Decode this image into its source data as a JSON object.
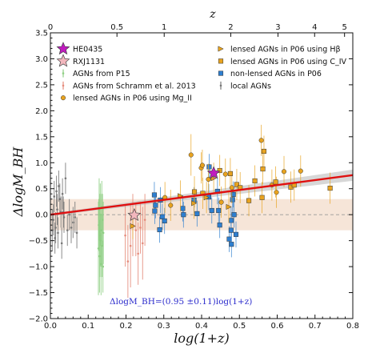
{
  "chart_data": {
    "type": "scatter",
    "xlabel": "log(1+z)",
    "ylabel": "ΔlogM_BH",
    "top_axis_label": "z",
    "xlim": [
      0.0,
      0.8
    ],
    "ylim": [
      -2.0,
      3.5
    ],
    "x_ticks": [
      "0.0",
      "0.1",
      "0.2",
      "0.3",
      "0.4",
      "0.5",
      "0.6",
      "0.7",
      "0.8"
    ],
    "y_ticks": [
      "−2.0",
      "−1.5",
      "−1.0",
      "−0.5",
      "0.0",
      "0.5",
      "1.0",
      "1.5",
      "2.0",
      "2.5",
      "3.0",
      "3.5"
    ],
    "top_ticks": [
      "0",
      "0.5",
      "1",
      "2",
      "3",
      "4",
      "5"
    ],
    "top_tick_z": [
      0,
      0.5,
      1,
      2,
      3,
      4,
      5
    ],
    "fit": {
      "slope": 0.95,
      "slope_err": 0.11,
      "label": "ΔlogM_BH=(0.95 ±0.11)log(1+z)"
    },
    "band": {
      "ylow": -0.3,
      "yhigh": 0.3
    },
    "legend_left": [
      {
        "label": "HE0435",
        "marker": "star",
        "color": "#c01bbf"
      },
      {
        "label": "RXJ1131",
        "marker": "star",
        "color": "#f2b7bd"
      },
      {
        "label": "AGNs from P15",
        "marker": "errbar",
        "color": "#8fcf84"
      },
      {
        "label": "AGNs from Schramm et al. 2013",
        "marker": "errbar",
        "color": "#e58b7b"
      },
      {
        "label": "lensed AGNs in P06 using Mg_II",
        "marker": "circle",
        "color": "#e8a31f"
      }
    ],
    "legend_right": [
      {
        "label": "lensed AGNs in P06 using Hβ",
        "marker": "triangle",
        "color": "#e8a31f"
      },
      {
        "label": "lensed AGNs in P06 using C_IV",
        "marker": "square",
        "color": "#e8a31f"
      },
      {
        "label": "non-lensed AGNs in P06",
        "marker": "square",
        "color": "#2e7fd0"
      },
      {
        "label": "local AGNs",
        "marker": "errbar",
        "color": "#777777"
      }
    ],
    "series": [
      {
        "name": "HE0435",
        "marker": "star",
        "color": "#c01bbf",
        "points": [
          [
            0.432,
            0.8,
            0.12
          ]
        ]
      },
      {
        "name": "RXJ1131",
        "marker": "star",
        "color": "#f2b7bd",
        "points": [
          [
            0.222,
            -0.01,
            0.1
          ]
        ]
      },
      {
        "name": "AGNs from P15",
        "marker": "errbar",
        "color": "#8fcf84",
        "points": [
          [
            0.127,
            -0.65,
            0.9
          ],
          [
            0.128,
            -0.2,
            0.5
          ],
          [
            0.129,
            0.1,
            0.6
          ],
          [
            0.13,
            -0.8,
            0.7
          ],
          [
            0.131,
            -0.4,
            0.8
          ],
          [
            0.132,
            0.0,
            0.6
          ],
          [
            0.133,
            -0.5,
            0.5
          ],
          [
            0.134,
            -0.95,
            0.6
          ],
          [
            0.135,
            -0.3,
            0.7
          ],
          [
            0.136,
            0.15,
            0.5
          ],
          [
            0.137,
            -0.6,
            0.6
          ],
          [
            0.138,
            -0.1,
            0.5
          ],
          [
            0.139,
            -1.0,
            0.5
          ],
          [
            0.14,
            -0.35,
            0.6
          ]
        ]
      },
      {
        "name": "AGNs from Schramm et al. 2013",
        "marker": "errbar",
        "color": "#e58b7b",
        "points": [
          [
            0.198,
            -0.4,
            0.6
          ],
          [
            0.205,
            -0.9,
            0.7
          ],
          [
            0.212,
            -0.6,
            0.8
          ],
          [
            0.218,
            -0.2,
            0.6
          ],
          [
            0.226,
            -0.3,
            0.5
          ],
          [
            0.232,
            -0.75,
            0.6
          ],
          [
            0.238,
            -0.25,
            0.5
          ],
          [
            0.244,
            -0.55,
            0.7
          ],
          [
            0.25,
            -0.1,
            0.5
          ]
        ]
      },
      {
        "name": "lensed AGNs in P06 using Mg_II",
        "marker": "circle",
        "color": "#e8a31f",
        "points": [
          [
            0.303,
            0.33,
            0.3
          ],
          [
            0.318,
            0.18,
            0.3
          ],
          [
            0.372,
            1.15,
            0.4
          ],
          [
            0.399,
            0.9,
            0.3
          ],
          [
            0.402,
            0.95,
            0.3
          ],
          [
            0.463,
            0.78,
            0.3
          ],
          [
            0.558,
            1.43,
            0.3
          ],
          [
            0.586,
            0.57,
            0.3
          ],
          [
            0.598,
            0.43,
            0.3
          ],
          [
            0.618,
            0.83,
            0.3
          ],
          [
            0.662,
            0.84,
            0.3
          ],
          [
            0.452,
            0.24,
            0.3
          ],
          [
            0.418,
            0.68,
            0.3
          ],
          [
            0.48,
            0.52,
            0.3
          ]
        ]
      },
      {
        "name": "lensed AGNs in P06 using Hβ",
        "marker": "triangle",
        "color": "#e8a31f",
        "points": [
          [
            0.218,
            -0.22,
            0.25
          ],
          [
            0.344,
            0.36,
            0.3
          ],
          [
            0.38,
            0.22,
            0.3
          ],
          [
            0.413,
            0.33,
            0.3
          ],
          [
            0.432,
            0.7,
            0.3
          ],
          [
            0.472,
            0.15,
            0.3
          ]
        ]
      },
      {
        "name": "lensed AGNs in P06 using C_IV",
        "marker": "square",
        "color": "#e8a31f",
        "points": [
          [
            0.381,
            0.44,
            0.3
          ],
          [
            0.403,
            0.41,
            0.3
          ],
          [
            0.448,
            0.85,
            0.3
          ],
          [
            0.476,
            0.79,
            0.3
          ],
          [
            0.493,
            0.58,
            0.3
          ],
          [
            0.541,
            0.65,
            0.3
          ],
          [
            0.56,
            0.33,
            0.3
          ],
          [
            0.562,
            0.88,
            0.3
          ],
          [
            0.565,
            1.22,
            0.3
          ],
          [
            0.596,
            0.63,
            0.3
          ],
          [
            0.636,
            0.53,
            0.3
          ],
          [
            0.645,
            0.57,
            0.3
          ],
          [
            0.74,
            0.51,
            0.3
          ],
          [
            0.502,
            0.52,
            0.3
          ],
          [
            0.525,
            0.27,
            0.3
          ]
        ]
      },
      {
        "name": "non-lensed AGNs in P06",
        "marker": "square",
        "color": "#2e7fd0",
        "points": [
          [
            0.275,
            0.38,
            0.25
          ],
          [
            0.276,
            0.07,
            0.25
          ],
          [
            0.278,
            0.18,
            0.25
          ],
          [
            0.289,
            -0.29,
            0.25
          ],
          [
            0.291,
            0.28,
            0.25
          ],
          [
            0.296,
            -0.04,
            0.25
          ],
          [
            0.302,
            -0.12,
            0.25
          ],
          [
            0.35,
            0.12,
            0.25
          ],
          [
            0.352,
            0.0,
            0.25
          ],
          [
            0.38,
            0.28,
            0.25
          ],
          [
            0.388,
            0.02,
            0.25
          ],
          [
            0.419,
            0.34,
            0.25
          ],
          [
            0.42,
            0.92,
            0.25
          ],
          [
            0.427,
            0.08,
            0.25
          ],
          [
            0.442,
            0.45,
            0.25
          ],
          [
            0.445,
            0.08,
            0.25
          ],
          [
            0.448,
            -0.2,
            0.25
          ],
          [
            0.473,
            -0.47,
            0.25
          ],
          [
            0.478,
            -0.11,
            0.25
          ],
          [
            0.479,
            -0.57,
            0.25
          ],
          [
            0.482,
            0.29,
            0.25
          ],
          [
            0.484,
            0.39,
            0.25
          ],
          [
            0.486,
            0.0,
            0.25
          ],
          [
            0.478,
            -0.3,
            0.25
          ],
          [
            0.491,
            -0.38,
            0.25
          ]
        ]
      },
      {
        "name": "local AGNs",
        "marker": "errbar",
        "color": "#777777",
        "points": [
          [
            0.005,
            -0.3,
            0.4
          ],
          [
            0.008,
            -0.1,
            0.3
          ],
          [
            0.01,
            0.35,
            0.3
          ],
          [
            0.012,
            -0.45,
            0.3
          ],
          [
            0.014,
            -0.25,
            0.3
          ],
          [
            0.016,
            0.45,
            0.3
          ],
          [
            0.018,
            0.1,
            0.3
          ],
          [
            0.02,
            -0.35,
            0.3
          ],
          [
            0.022,
            0.55,
            0.3
          ],
          [
            0.025,
            0.3,
            0.3
          ],
          [
            0.028,
            0.05,
            0.3
          ],
          [
            0.03,
            -0.55,
            0.3
          ],
          [
            0.032,
            0.4,
            0.3
          ],
          [
            0.034,
            0.05,
            0.3
          ],
          [
            0.036,
            -0.05,
            0.3
          ],
          [
            0.04,
            0.7,
            0.3
          ],
          [
            0.045,
            -0.3,
            0.3
          ],
          [
            0.05,
            0.0,
            0.3
          ],
          [
            0.055,
            -0.25,
            0.3
          ],
          [
            0.06,
            -0.15,
            0.3
          ],
          [
            0.065,
            -0.05,
            0.3
          ],
          [
            0.07,
            -0.35,
            0.3
          ]
        ]
      }
    ]
  }
}
